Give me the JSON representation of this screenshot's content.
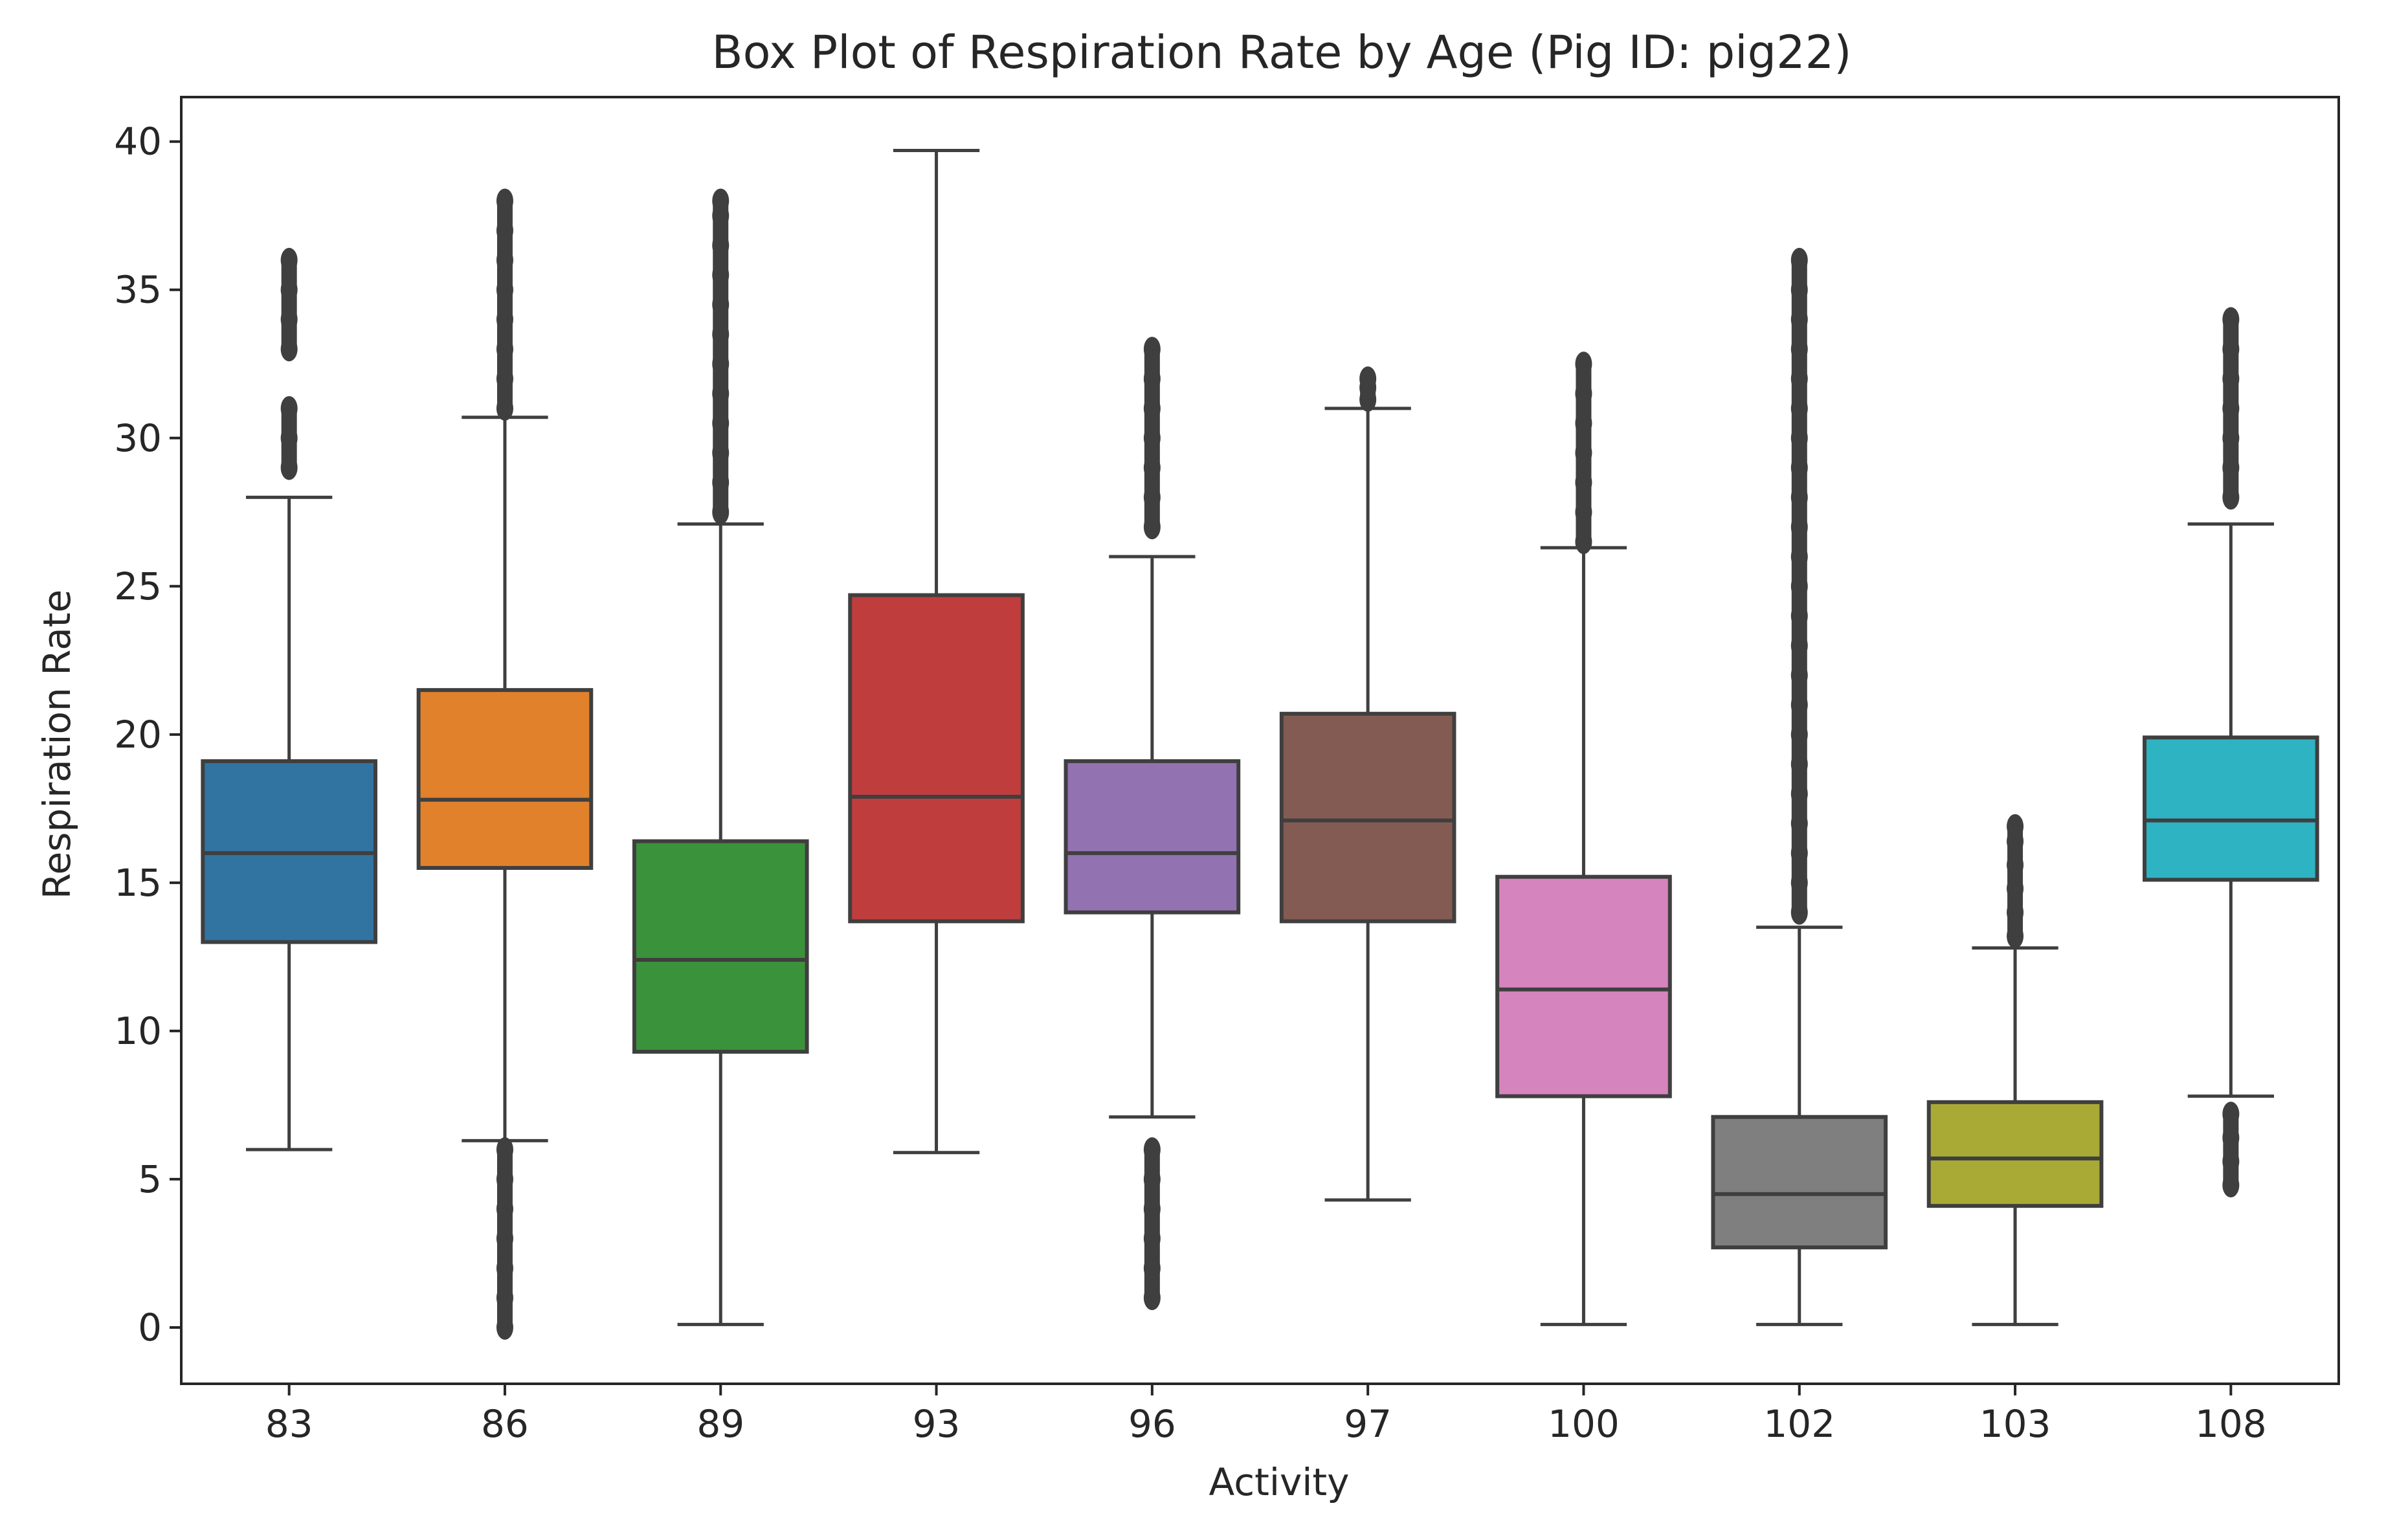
{
  "chart_data": {
    "type": "box",
    "title": "Box Plot of Respiration Rate by Age (Pig ID: pig22)",
    "xlabel": "Activity",
    "ylabel": "Respiration Rate",
    "ylim": [
      -1.9,
      41.5
    ],
    "yticks": [
      0,
      5,
      10,
      15,
      20,
      25,
      30,
      35,
      40
    ],
    "ytick_labels": [
      "0",
      "5",
      "10",
      "15",
      "20",
      "25",
      "30",
      "35",
      "40"
    ],
    "grid": false,
    "boxes": [
      {
        "category": "83",
        "color": "#3274a1",
        "whisker_low": 6.0,
        "q1": 13.0,
        "median": 16.0,
        "q3": 19.1,
        "whisker_high": 28.0,
        "outliers_high": [
          29.0,
          30.0,
          31.0,
          33.0,
          34.0,
          35.0,
          36.0
        ],
        "outliers_low": []
      },
      {
        "category": "86",
        "color": "#e1812c",
        "whisker_low": 6.3,
        "q1": 15.5,
        "median": 17.8,
        "q3": 21.5,
        "whisker_high": 30.7,
        "outliers_high": [
          31.0,
          32.0,
          33.0,
          34.0,
          35.0,
          36.0,
          37.0,
          38.0
        ],
        "outliers_low": [
          0.0,
          1.0,
          2.0,
          3.0,
          4.0,
          5.0,
          6.0
        ]
      },
      {
        "category": "89",
        "color": "#3a923a",
        "whisker_low": 0.1,
        "q1": 9.3,
        "median": 12.4,
        "q3": 16.4,
        "whisker_high": 27.1,
        "outliers_high": [
          27.5,
          28.5,
          29.5,
          30.5,
          31.5,
          32.5,
          33.5,
          34.5,
          35.5,
          36.5,
          37.5,
          38.0
        ],
        "outliers_low": []
      },
      {
        "category": "93",
        "color": "#c03d3e",
        "whisker_low": 5.9,
        "q1": 13.7,
        "median": 17.9,
        "q3": 24.7,
        "whisker_high": 39.7,
        "outliers_high": [],
        "outliers_low": []
      },
      {
        "category": "96",
        "color": "#9372b2",
        "whisker_low": 7.1,
        "q1": 14.0,
        "median": 16.0,
        "q3": 19.1,
        "whisker_high": 26.0,
        "outliers_high": [
          27.0,
          28.0,
          29.0,
          30.0,
          31.0,
          32.0,
          33.0
        ],
        "outliers_low": [
          1.0,
          2.0,
          3.0,
          4.0,
          5.0,
          6.0
        ]
      },
      {
        "category": "97",
        "color": "#845b53",
        "whisker_low": 4.3,
        "q1": 13.7,
        "median": 17.1,
        "q3": 20.7,
        "whisker_high": 31.0,
        "outliers_high": [
          31.3,
          31.7,
          32.0
        ],
        "outliers_low": []
      },
      {
        "category": "100",
        "color": "#d684bd",
        "whisker_low": 0.1,
        "q1": 7.8,
        "median": 11.4,
        "q3": 15.2,
        "whisker_high": 26.3,
        "outliers_high": [
          26.5,
          27.5,
          28.5,
          29.5,
          30.5,
          31.5,
          32.5
        ],
        "outliers_low": []
      },
      {
        "category": "102",
        "color": "#7f7f7f",
        "whisker_low": 0.1,
        "q1": 2.7,
        "median": 4.5,
        "q3": 7.1,
        "whisker_high": 13.5,
        "outliers_high": [
          14,
          15,
          16,
          17,
          18,
          19,
          20,
          21,
          22,
          23,
          24,
          25,
          26,
          27,
          28,
          29,
          30,
          31,
          32,
          33,
          34,
          35,
          36
        ],
        "outliers_low": []
      },
      {
        "category": "103",
        "color": "#a9aa35",
        "whisker_low": 0.1,
        "q1": 4.1,
        "median": 5.7,
        "q3": 7.6,
        "whisker_high": 12.8,
        "outliers_high": [
          13.2,
          14.0,
          14.8,
          15.6,
          16.4,
          16.9
        ],
        "outliers_low": []
      },
      {
        "category": "108",
        "color": "#2eb3c2",
        "whisker_low": 7.8,
        "q1": 15.1,
        "median": 17.1,
        "q3": 19.9,
        "whisker_high": 27.1,
        "outliers_high": [
          28.0,
          29.0,
          30.0,
          31.0,
          32.0,
          33.0,
          34.0
        ],
        "outliers_low": [
          4.8,
          5.6,
          6.4,
          7.2
        ]
      }
    ]
  }
}
